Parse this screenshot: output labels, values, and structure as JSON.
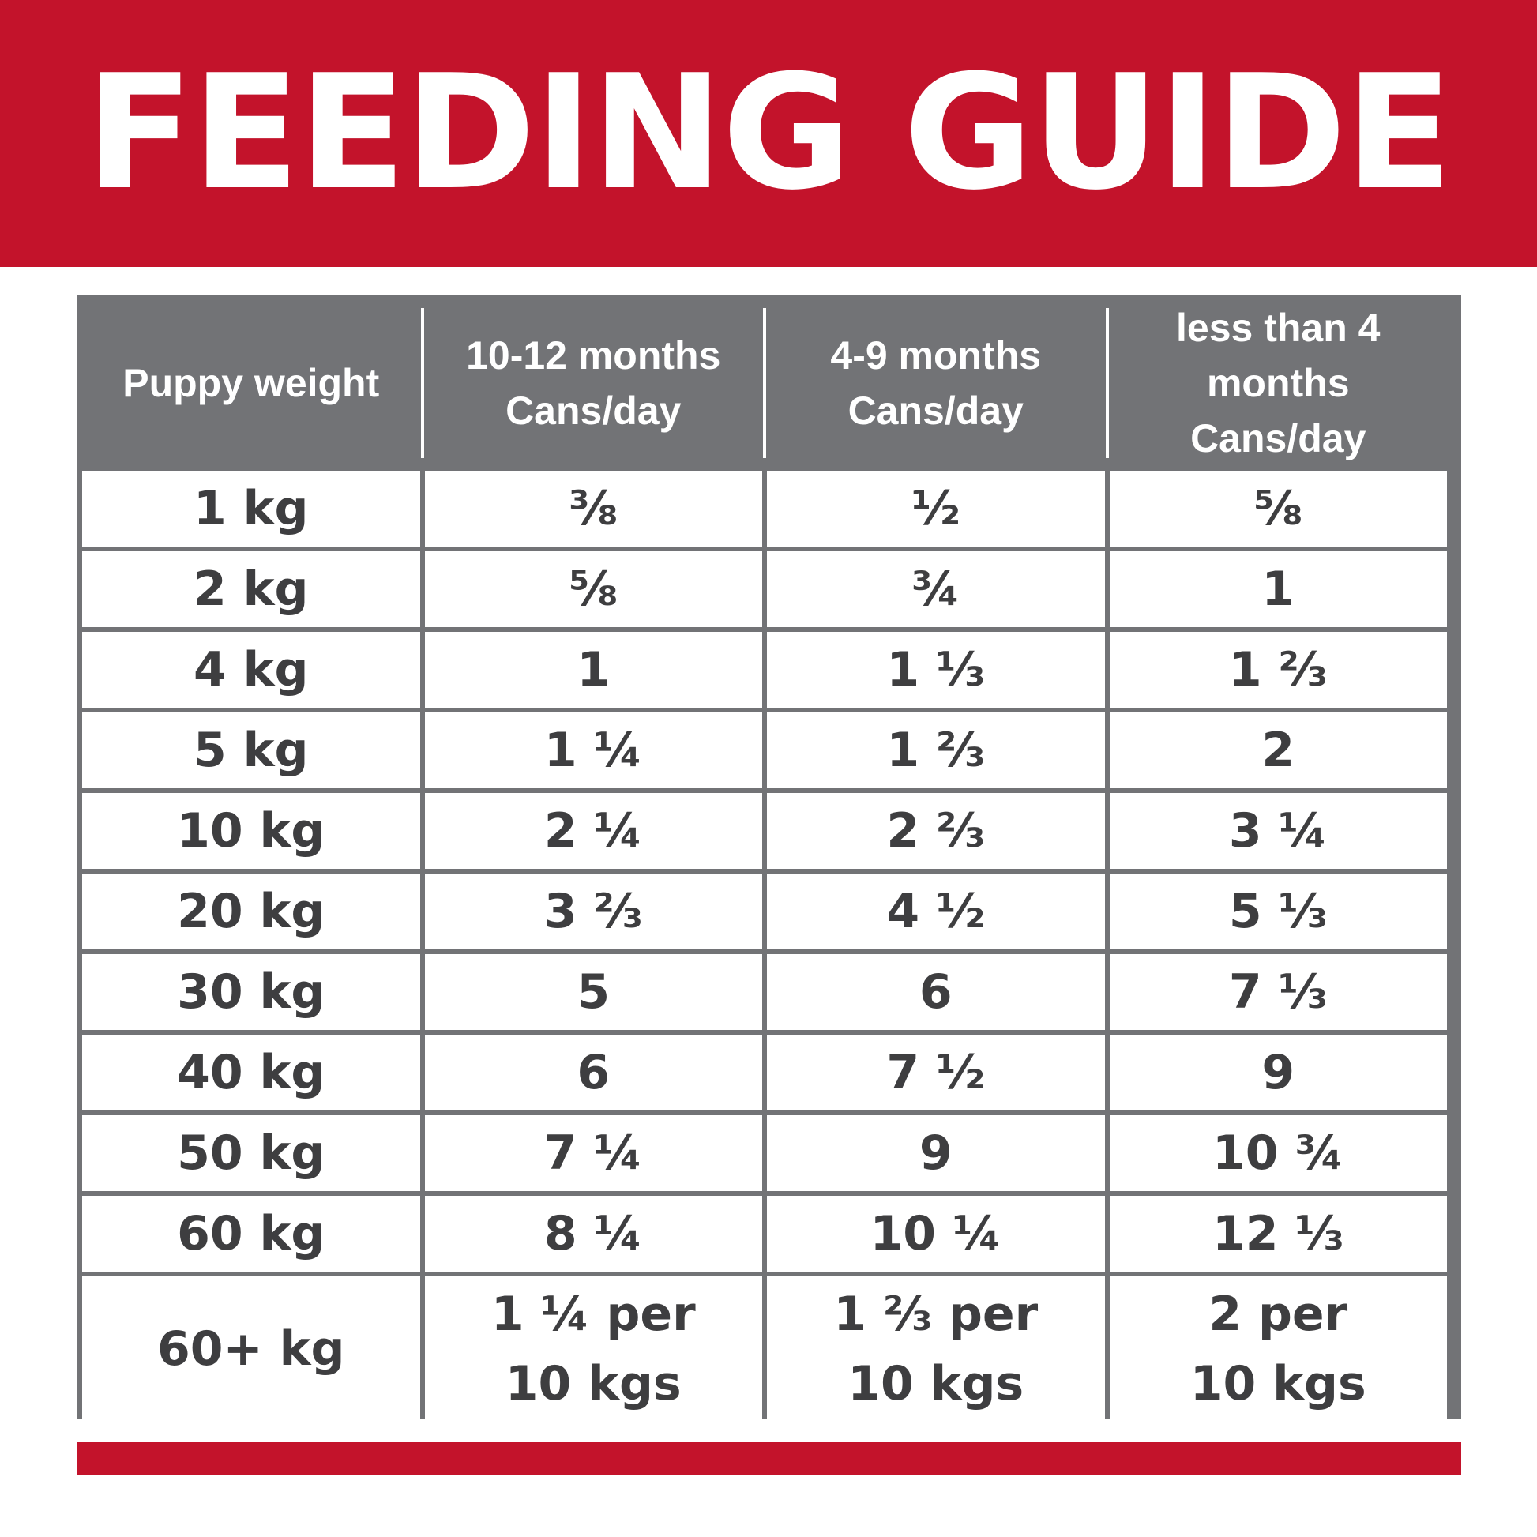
{
  "title": "FEEDING GUIDE",
  "colors": {
    "brand_red": "#c3132b",
    "header_gray": "#727376",
    "text_dark": "#3e3e40"
  },
  "table": {
    "headers": [
      [
        "Puppy weight"
      ],
      [
        "10-12 months",
        "Cans/day"
      ],
      [
        "4-9 months",
        "Cans/day"
      ],
      [
        "less than 4 months",
        "Cans/day"
      ]
    ],
    "rows": [
      [
        "1 kg",
        "⅜",
        "½",
        "⅝"
      ],
      [
        "2 kg",
        "⅝",
        "¾",
        "1"
      ],
      [
        "4 kg",
        "1",
        "1 ⅓",
        "1 ⅔"
      ],
      [
        "5 kg",
        "1 ¼",
        "1 ⅔",
        "2"
      ],
      [
        "10 kg",
        "2 ¼",
        "2 ⅔",
        "3 ¼"
      ],
      [
        "20 kg",
        "3 ⅔",
        "4 ½",
        "5 ⅓"
      ],
      [
        "30 kg",
        "5",
        "6",
        "7 ⅓"
      ],
      [
        "40 kg",
        "6",
        "7 ½",
        "9"
      ],
      [
        "50 kg",
        "7 ¼",
        "9",
        "10 ¾"
      ],
      [
        "60 kg",
        "8 ¼",
        "10 ¼",
        "12 ⅓"
      ]
    ],
    "last_row": {
      "weight": "60+ kg",
      "values": [
        [
          "1 ¼ per",
          "10 kgs"
        ],
        [
          "1 ⅔ per",
          "10 kgs"
        ],
        [
          "2 per",
          "10 kgs"
        ]
      ]
    }
  }
}
